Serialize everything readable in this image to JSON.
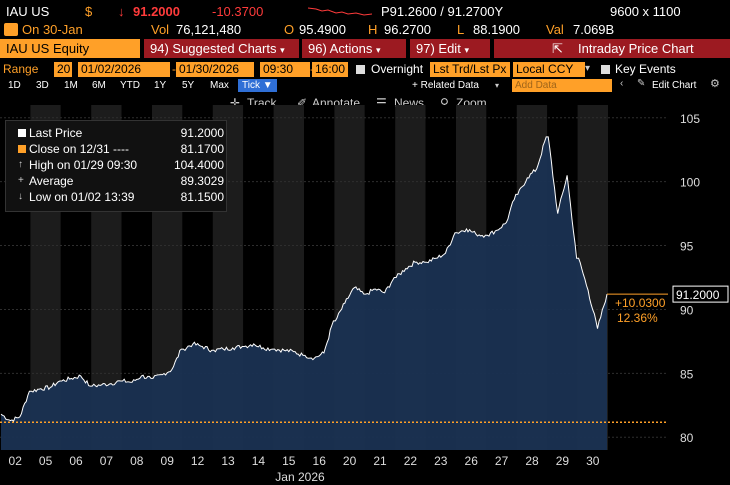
{
  "quote": {
    "ticker": "IAU US",
    "currency_flag": "$",
    "last_price": "91.2000",
    "change": "-10.3700",
    "bid_ask": "P91.2600 / 91.2700Y",
    "size": "9600 x 1100",
    "date_label": "On 30-Jan",
    "volume_label": "Vol",
    "volume": "76,121,480",
    "open_label": "O",
    "open": "95.4900",
    "high_label": "H",
    "high": "96.2700",
    "low_label": "L",
    "low": "88.1900",
    "value_label": "Val",
    "value": "7.069B"
  },
  "menu": {
    "security": "IAU US Equity",
    "suggested": "94) Suggested Charts",
    "actions": "96) Actions",
    "edit": "97) Edit",
    "intraday": "Intraday Price Chart"
  },
  "range": {
    "label": "Range",
    "interval": "20",
    "start_date": "01/02/2026",
    "end_date": "01/30/2026",
    "start_time": "09:30",
    "end_time": "16:00",
    "overnight": "Overnight",
    "price_type": "Lst Trd/Lst Px",
    "currency": "Local CCY",
    "key_events": "Key Events"
  },
  "periods": [
    "1D",
    "3D",
    "1M",
    "6M",
    "YTD",
    "1Y",
    "5Y",
    "Max"
  ],
  "selected_period": "Tick ▼",
  "related_data": "+ Related Data",
  "add_data_placeholder": "Add Data",
  "edit_chart": "Edit Chart",
  "tools": {
    "track": "Track",
    "annotate": "Annotate",
    "news": "News",
    "zoom": "Zoom"
  },
  "legend": [
    {
      "label": "Last Price",
      "value": "91.2000"
    },
    {
      "label": "Close on 12/31 ----",
      "value": "81.1700"
    },
    {
      "label": "High on 01/29 09:30",
      "value": "104.4000"
    },
    {
      "label": "Average",
      "value": "89.3029"
    },
    {
      "label": "Low on 01/02 13:39",
      "value": "81.1500"
    }
  ],
  "colors": {
    "accent": "#ffa028",
    "menu_red": "#9c1a21",
    "area": "#1a3152",
    "line": "#ffffff"
  },
  "chart_data": {
    "type": "area",
    "categories": [
      "02",
      "05",
      "06",
      "07",
      "08",
      "09",
      "12",
      "13",
      "14",
      "15",
      "16",
      "20",
      "21",
      "22",
      "23",
      "26",
      "27",
      "28",
      "29",
      "30"
    ],
    "xlabel": "Jan 2026",
    "ylim": [
      79,
      106
    ],
    "yticks": [
      80,
      85,
      90,
      95,
      100,
      105
    ],
    "reference_line": 81.17,
    "last_value": 91.2,
    "last_value_label": "91.2000",
    "change_label": "+10.0300",
    "change_pct_label": "12.36%",
    "series": [
      {
        "values": [
          [
            81.8,
            81.3,
            81.6,
            83.6
          ],
          [
            83.6,
            83.8,
            83.9,
            84.4
          ],
          [
            84.4,
            84.6,
            84.8,
            84.0
          ],
          [
            84.0,
            84.1,
            84.2,
            84.4
          ],
          [
            84.4,
            84.3,
            84.8,
            84.6
          ],
          [
            84.6,
            84.9,
            85.3,
            86.9
          ],
          [
            86.9,
            87.3,
            87.1,
            86.8
          ],
          [
            86.8,
            86.9,
            87.0,
            87.1
          ],
          [
            87.1,
            87.3,
            87.0,
            86.9
          ],
          [
            86.9,
            86.8,
            86.7,
            86.4
          ],
          [
            86.4,
            86.2,
            86.6,
            89.1
          ],
          [
            89.1,
            90.5,
            91.7,
            91.2
          ],
          [
            91.2,
            91.6,
            91.3,
            92.5
          ],
          [
            92.5,
            93.2,
            93.7,
            93.7
          ],
          [
            93.7,
            94.0,
            94.4,
            96.0
          ],
          [
            96.0,
            96.3,
            95.9,
            95.8
          ],
          [
            95.8,
            96.2,
            96.8,
            99.0
          ],
          [
            99.0,
            100.3,
            101.0,
            103.5
          ],
          [
            103.5,
            97.5,
            100.5,
            94.0
          ],
          [
            94.0,
            91.5,
            88.5,
            91.2
          ]
        ]
      }
    ]
  }
}
